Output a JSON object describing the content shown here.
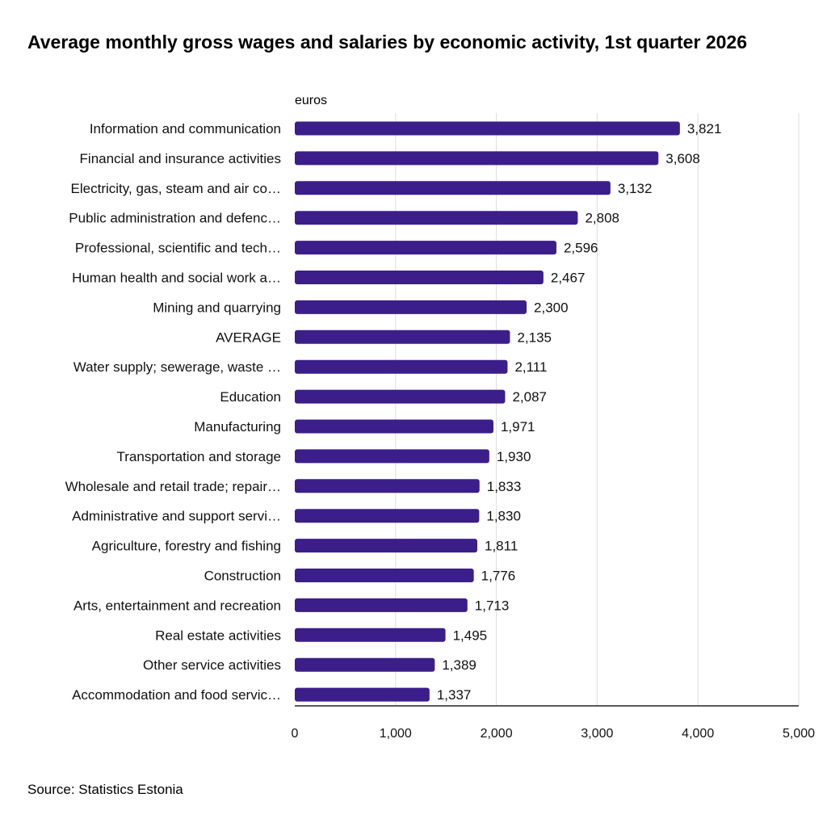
{
  "title": "Average monthly gross wages and salaries by economic activity, 1st quarter 2026",
  "unit_label": "euros",
  "source": "Source: Statistics Estonia",
  "colors": {
    "bar": "#3b1e8a",
    "grid": "#dddddd",
    "axis": "#222222"
  },
  "chart_data": {
    "type": "bar",
    "orientation": "horizontal",
    "categories": [
      "Information and communication",
      "Financial and insurance activities",
      "Electricity, gas, steam and air co…",
      "Public administration and defenc…",
      "Professional, scientific and tech…",
      "Human health and social work a…",
      "Mining and quarrying",
      "AVERAGE",
      "Water supply; sewerage, waste …",
      "Education",
      "Manufacturing",
      "Transportation and storage",
      "Wholesale and retail trade; repair…",
      "Administrative and support servi…",
      "Agriculture, forestry and fishing",
      "Construction",
      "Arts, entertainment and recreation",
      "Real estate activities",
      "Other service activities",
      "Accommodation and food servic…"
    ],
    "values": [
      3821,
      3608,
      3132,
      2808,
      2596,
      2467,
      2300,
      2135,
      2111,
      2087,
      1971,
      1930,
      1833,
      1830,
      1811,
      1776,
      1713,
      1495,
      1389,
      1337
    ],
    "value_labels": [
      "3,821",
      "3,608",
      "3,132",
      "2,808",
      "2,596",
      "2,467",
      "2,300",
      "2,135",
      "2,111",
      "2,087",
      "1,971",
      "1,930",
      "1,833",
      "1,830",
      "1,811",
      "1,776",
      "1,713",
      "1,495",
      "1,389",
      "1,337"
    ],
    "xlim": [
      0,
      5000
    ],
    "x_ticks": [
      0,
      1000,
      2000,
      3000,
      4000,
      5000
    ],
    "x_tick_labels": [
      "0",
      "1,000",
      "2,000",
      "3,000",
      "4,000",
      "5,000"
    ],
    "grid": true,
    "legend": "none"
  }
}
